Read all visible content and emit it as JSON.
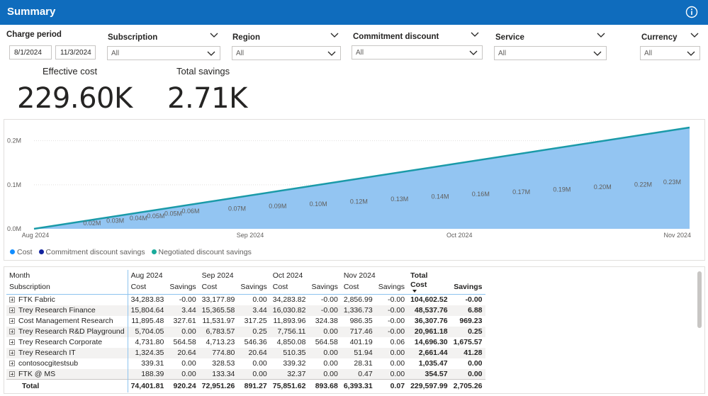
{
  "header": {
    "title": "Summary",
    "info_icon": "info-icon"
  },
  "filters": {
    "charge_period": {
      "label": "Charge period",
      "start": "8/1/2024",
      "end": "11/3/2024"
    },
    "subscription": {
      "label": "Subscription",
      "value": "All"
    },
    "region": {
      "label": "Region",
      "value": "All"
    },
    "commitment_discount": {
      "label": "Commitment discount",
      "value": "All"
    },
    "service": {
      "label": "Service",
      "value": "All"
    },
    "currency": {
      "label": "Currency",
      "value": "All"
    }
  },
  "kpis": {
    "effective_cost": {
      "label": "Effective cost",
      "value": "229.60K"
    },
    "total_savings": {
      "label": "Total savings",
      "value": "2.71K"
    }
  },
  "chart_data": {
    "type": "area",
    "x_axis_ticks": [
      "Aug 2024",
      "Sep 2024",
      "Oct 2024",
      "Nov 2024"
    ],
    "y_axis_ticks": [
      "0.0M",
      "0.1M",
      "0.2M"
    ],
    "ylim": [
      0,
      0.23
    ],
    "grid": true,
    "legend_position": "bottom-left",
    "series": [
      {
        "name": "Cost",
        "color": "#118dff"
      },
      {
        "name": "Commitment discount savings",
        "color": "#12239e"
      },
      {
        "name": "Negotiated discount savings",
        "color": "#1aab9b"
      }
    ],
    "area_color": "#93c5f2",
    "line_color": "#1a9aa8",
    "data_labels": [
      {
        "day": 10,
        "label": "0.02M"
      },
      {
        "day": 14,
        "label": "0.03M"
      },
      {
        "day": 18,
        "label": "0.04M"
      },
      {
        "day": 21,
        "label": "0.05M"
      },
      {
        "day": 24,
        "label": "0.05M"
      },
      {
        "day": 27,
        "label": "0.06M"
      },
      {
        "day": 35,
        "label": "0.07M"
      },
      {
        "day": 42,
        "label": "0.09M"
      },
      {
        "day": 49,
        "label": "0.10M"
      },
      {
        "day": 56,
        "label": "0.12M"
      },
      {
        "day": 63,
        "label": "0.13M"
      },
      {
        "day": 70,
        "label": "0.14M"
      },
      {
        "day": 77,
        "label": "0.16M"
      },
      {
        "day": 84,
        "label": "0.17M"
      },
      {
        "day": 91,
        "label": "0.19M"
      },
      {
        "day": 98,
        "label": "0.20M"
      },
      {
        "day": 105,
        "label": "0.22M"
      },
      {
        "day": 110,
        "label": "0.23M"
      }
    ]
  },
  "table": {
    "row_header_1": "Month",
    "row_header_2": "Subscription",
    "month_groups": [
      "Aug 2024",
      "Sep 2024",
      "Oct 2024",
      "Nov 2024",
      "Total"
    ],
    "sub_headers": [
      "Cost",
      "Savings"
    ],
    "rows": [
      {
        "name": "FTK Fabric",
        "values": [
          "34,283.83",
          "-0.00",
          "33,177.89",
          "0.00",
          "34,283.82",
          "-0.00",
          "2,856.99",
          "-0.00",
          "104,602.52",
          "-0.00"
        ]
      },
      {
        "name": "Trey Research Finance",
        "values": [
          "15,804.64",
          "3.44",
          "15,365.58",
          "3.44",
          "16,030.82",
          "-0.00",
          "1,336.73",
          "-0.00",
          "48,537.76",
          "6.88"
        ]
      },
      {
        "name": "Cost Management Research",
        "values": [
          "11,895.48",
          "327.61",
          "11,531.97",
          "317.25",
          "11,893.96",
          "324.38",
          "986.35",
          "-0.00",
          "36,307.76",
          "969.23"
        ]
      },
      {
        "name": "Trey Research R&D Playground",
        "values": [
          "5,704.05",
          "0.00",
          "6,783.57",
          "0.25",
          "7,756.11",
          "0.00",
          "717.46",
          "-0.00",
          "20,961.18",
          "0.25"
        ]
      },
      {
        "name": "Trey Research Corporate",
        "values": [
          "4,731.80",
          "564.58",
          "4,713.23",
          "546.36",
          "4,850.08",
          "564.58",
          "401.19",
          "0.06",
          "14,696.30",
          "1,675.57"
        ]
      },
      {
        "name": "Trey Research IT",
        "values": [
          "1,324.35",
          "20.64",
          "774.80",
          "20.64",
          "510.35",
          "0.00",
          "51.94",
          "0.00",
          "2,661.44",
          "41.28"
        ]
      },
      {
        "name": "contosocgitestsub",
        "values": [
          "339.31",
          "0.00",
          "328.53",
          "0.00",
          "339.32",
          "0.00",
          "28.31",
          "0.00",
          "1,035.47",
          "0.00"
        ]
      },
      {
        "name": "FTK @ MS",
        "values": [
          "188.39",
          "0.00",
          "133.34",
          "0.00",
          "32.37",
          "0.00",
          "0.47",
          "0.00",
          "354.57",
          "0.00"
        ]
      }
    ],
    "total": {
      "name": "Total",
      "values": [
        "74,401.81",
        "920.24",
        "72,951.26",
        "891.27",
        "75,851.62",
        "893.68",
        "6,393.31",
        "0.07",
        "229,597.99",
        "2,705.26"
      ]
    }
  }
}
